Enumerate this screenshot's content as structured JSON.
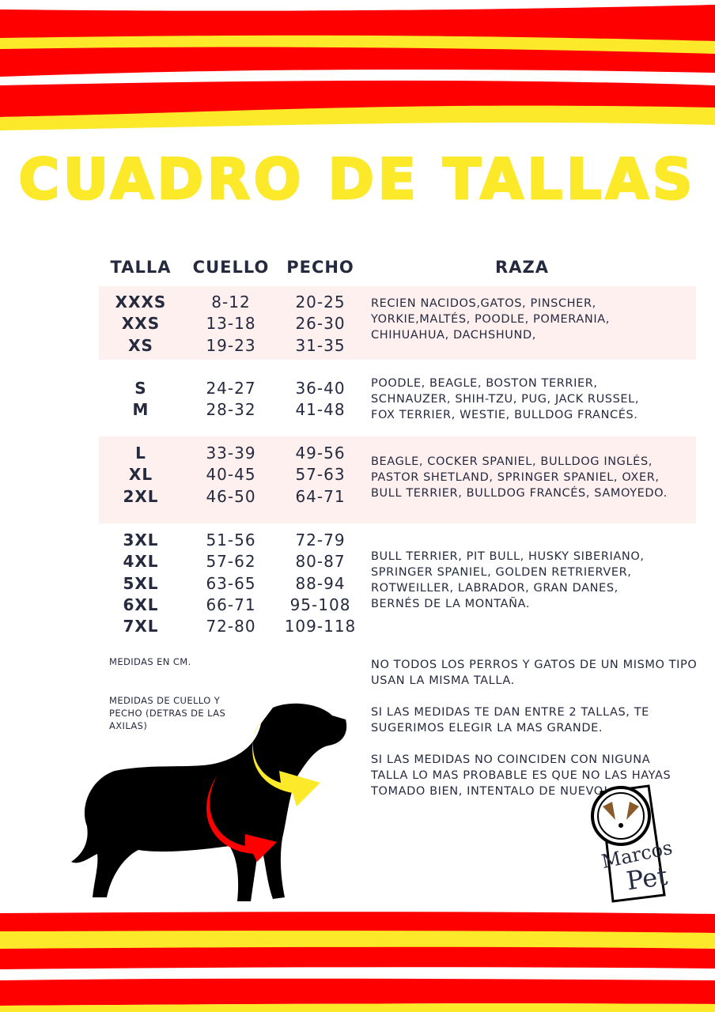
{
  "colors": {
    "red": "#ff0000",
    "yellow": "#fbe92a",
    "text": "#262a3f",
    "band": "#fdf0ef"
  },
  "title": "CUADRO DE TALLAS",
  "headers": {
    "talla": "TALLA",
    "cuello": "CUELLO",
    "pecho": "PECHO",
    "raza": "RAZA"
  },
  "groups": [
    {
      "sizes": [
        "XXXS",
        "XXS",
        "XS"
      ],
      "cuello": [
        "8-12",
        "13-18",
        "19-23"
      ],
      "pecho": [
        "20-25",
        "26-30",
        "31-35"
      ],
      "breeds": "RECIEN NACIDOS,GATOS, PINSCHER,\nYORKIE,MALTÉS, POODLE, POMERANIA,\nCHIHUAHUA, DACHSHUND,"
    },
    {
      "sizes": [
        "S",
        "M"
      ],
      "cuello": [
        "24-27",
        "28-32"
      ],
      "pecho": [
        "36-40",
        "41-48"
      ],
      "breeds": "POODLE, BEAGLE, BOSTON TERRIER,\nSCHNAUZER, SHIH-TZU, PUG, JACK RUSSEL,\nFOX TERRIER, WESTIE, BULLDOG FRANCÉS."
    },
    {
      "sizes": [
        "L",
        "XL",
        "2XL"
      ],
      "cuello": [
        "33-39",
        "40-45",
        "46-50"
      ],
      "pecho": [
        "49-56",
        "57-63",
        "64-71"
      ],
      "breeds": "BEAGLE, COCKER SPANIEL, BULLDOG INGLÉS,\nPASTOR SHETLAND, SPRINGER SPANIEL, OXER,\nBULL TERRIER, BULLDOG FRANCÉS, SAMOYEDO."
    },
    {
      "sizes": [
        "3XL",
        "4XL",
        "5XL",
        "6XL",
        "7XL"
      ],
      "cuello": [
        "51-56",
        "57-62",
        "63-65",
        "66-71",
        "72-80"
      ],
      "pecho": [
        "72-79",
        "80-87",
        "88-94",
        "95-108",
        "109-118"
      ],
      "breeds": "BULL TERRIER, PIT BULL, HUSKY SIBERIANO,\nSPRINGER SPANIEL, GOLDEN RETRIERVER,\nROTWEILLER, LABRADOR, GRAN DANES,\nBERNÉS DE LA MONTAÑA."
    }
  ],
  "notes": {
    "units": "MEDIDAS EN CM.",
    "measure": "MEDIDAS DE CUELLO Y PECHO (DETRAS DE LAS AXILAS)",
    "tip1": "NO TODOS LOS PERROS Y GATOS DE UN MISMO TIPO USAN LA MISMA TALLA.",
    "tip2": "SI LAS MEDIDAS TE DAN ENTRE 2 TALLAS, TE SUGERIMOS ELEGIR LA MAS GRANDE.",
    "tip3": "SI LAS MEDIDAS NO COINCIDEN CON NIGUNA TALLA LO MAS PROBABLE ES QUE NO LAS HAYAS TOMADO BIEN, INTENTALO DE NUEVO!."
  },
  "logo": {
    "text_top": "Marcos",
    "text_bottom": "Pet"
  }
}
